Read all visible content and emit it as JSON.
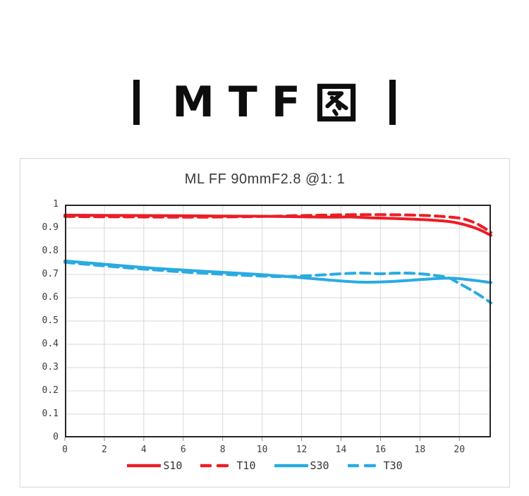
{
  "page": {
    "background": "#ffffff"
  },
  "header": {
    "title": "MTF图",
    "title_latin": "MTF",
    "title_cjk": "图"
  },
  "colors": {
    "red": "#ed1c24",
    "blue": "#29abe2",
    "grid": "#d9d9d9",
    "frame": "#262626",
    "tick_mark": "#8c8c8c",
    "text": "#3c3c3c",
    "panel_border": "#d8d8d8",
    "header_ink": "#0d0d0d"
  },
  "chart_data": {
    "type": "line",
    "title": "ML FF 90mmF2.8 @1: 1",
    "xlabel": "",
    "ylabel": "",
    "xlim": [
      0,
      21.6
    ],
    "ylim": [
      0,
      1
    ],
    "xticks": [
      0,
      2,
      4,
      6,
      8,
      10,
      12,
      14,
      16,
      18,
      20
    ],
    "yticks": [
      0,
      0.1,
      0.2,
      0.3,
      0.4,
      0.5,
      0.6,
      0.7,
      0.8,
      0.9,
      1
    ],
    "grid": true,
    "legend_position": "bottom",
    "series": [
      {
        "name": "S10",
        "color": "#ed1c24",
        "style": "solid",
        "x": [
          0,
          2,
          4,
          6,
          8,
          10,
          12,
          13.5,
          14.5,
          15.5,
          16.5,
          17.5,
          18.5,
          19.5,
          20.3,
          21,
          21.6
        ],
        "y": [
          0.955,
          0.954,
          0.953,
          0.952,
          0.951,
          0.95,
          0.948,
          0.946,
          0.947,
          0.943,
          0.941,
          0.938,
          0.934,
          0.927,
          0.913,
          0.893,
          0.868
        ]
      },
      {
        "name": "T10",
        "color": "#ed1c24",
        "style": "dashed",
        "x": [
          0,
          2,
          4,
          6,
          8,
          10,
          12,
          14,
          15.5,
          17,
          18,
          19,
          20,
          20.7,
          21.2,
          21.6
        ],
        "y": [
          0.949,
          0.948,
          0.947,
          0.946,
          0.947,
          0.949,
          0.953,
          0.956,
          0.957,
          0.956,
          0.954,
          0.95,
          0.942,
          0.925,
          0.903,
          0.88
        ]
      },
      {
        "name": "S30",
        "color": "#29abe2",
        "style": "solid",
        "x": [
          0,
          2,
          4,
          6,
          8,
          10,
          12,
          13,
          14,
          15,
          16,
          17,
          18,
          19,
          19.6,
          20.2,
          21,
          21.6
        ],
        "y": [
          0.758,
          0.744,
          0.73,
          0.719,
          0.709,
          0.699,
          0.686,
          0.679,
          0.672,
          0.667,
          0.668,
          0.672,
          0.678,
          0.683,
          0.684,
          0.68,
          0.672,
          0.665
        ]
      },
      {
        "name": "T30",
        "color": "#29abe2",
        "style": "dashed",
        "x": [
          0,
          2,
          4,
          6,
          8,
          10,
          11,
          12,
          13,
          14,
          15,
          16,
          17,
          18,
          19,
          19.5,
          20,
          20.6,
          21.1,
          21.6
        ],
        "y": [
          0.752,
          0.737,
          0.723,
          0.711,
          0.701,
          0.693,
          0.691,
          0.693,
          0.698,
          0.703,
          0.706,
          0.703,
          0.706,
          0.703,
          0.693,
          0.684,
          0.661,
          0.633,
          0.607,
          0.578
        ]
      }
    ]
  }
}
